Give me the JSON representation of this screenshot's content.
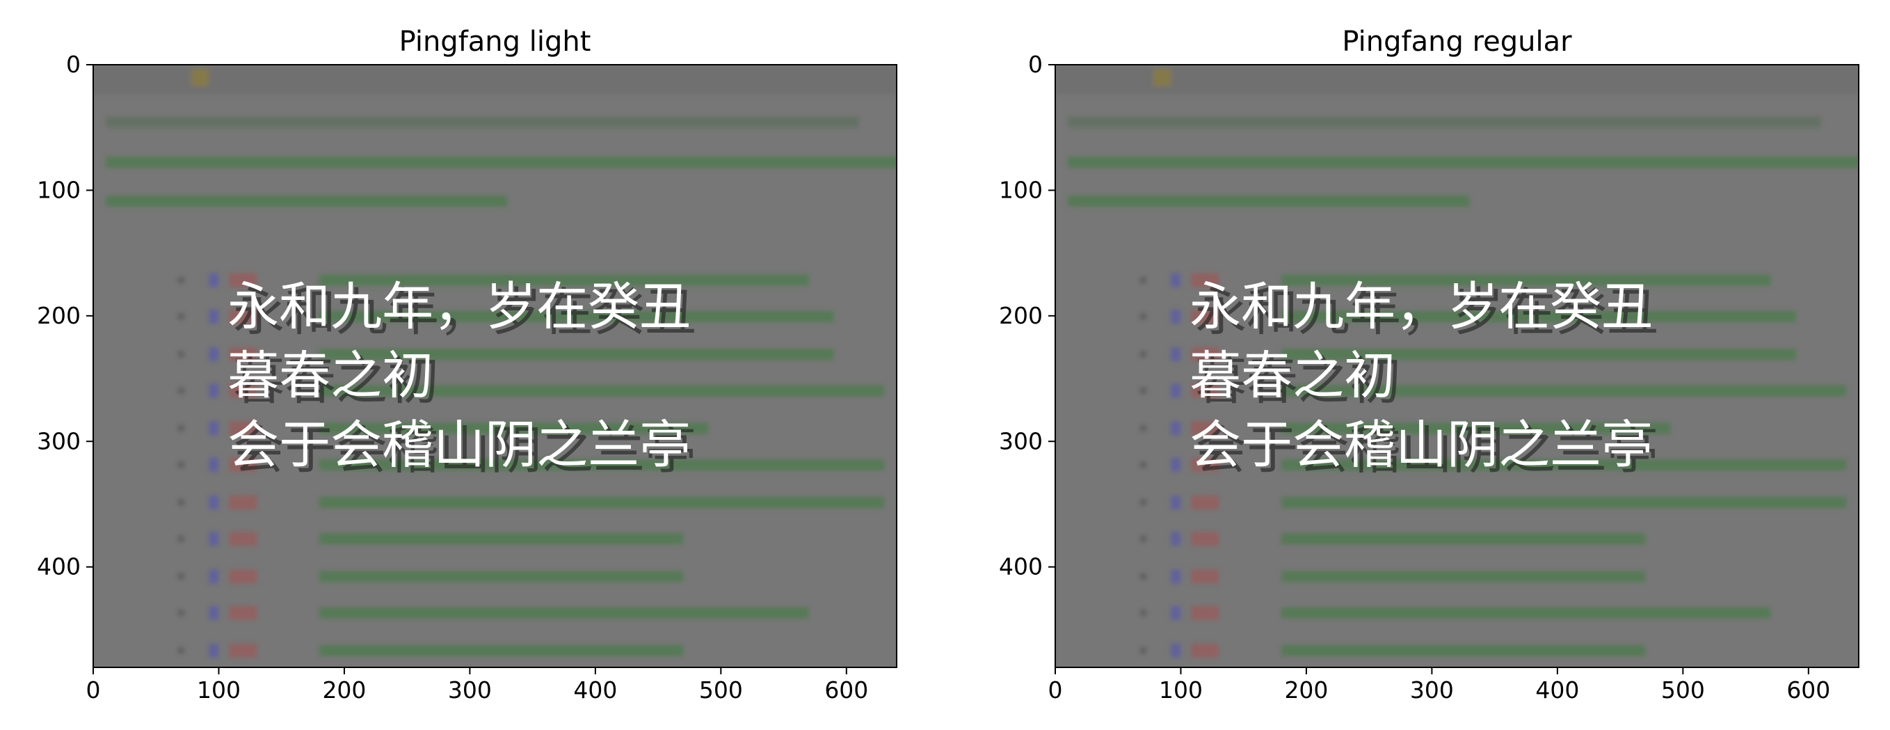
{
  "chart_data": [
    {
      "type": "image",
      "title": "Pingfang light",
      "xlim": [
        0,
        640
      ],
      "ylim": [
        480,
        0
      ],
      "x_ticks": [
        0,
        100,
        200,
        300,
        400,
        500,
        600
      ],
      "y_ticks": [
        0,
        100,
        200,
        300,
        400
      ],
      "background_color": "#777777",
      "text_color": "#ffffff",
      "overlay_lines": [
        "永和九年，岁在癸丑",
        "暮春之初",
        "会于会稽山阴之兰亭"
      ]
    },
    {
      "type": "image",
      "title": "Pingfang regular",
      "xlim": [
        0,
        640
      ],
      "ylim": [
        480,
        0
      ],
      "x_ticks": [
        0,
        100,
        200,
        300,
        400,
        500,
        600
      ],
      "y_ticks": [
        0,
        100,
        200,
        300,
        400
      ],
      "background_color": "#777777",
      "text_color": "#ffffff",
      "overlay_lines": [
        "永和九年，岁在癸丑",
        "暮春之初",
        "会于会稽山阴之兰亭"
      ]
    }
  ]
}
